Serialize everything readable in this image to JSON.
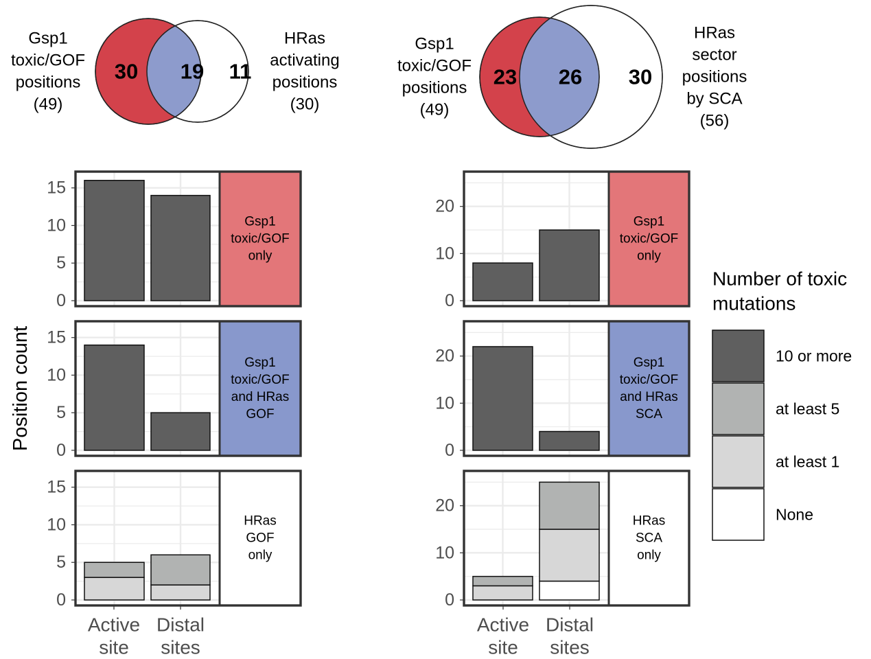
{
  "colors": {
    "red": "#d3424b",
    "blue": "#8d9bcc",
    "strip_red": "#e37679",
    "strip_blue": "#8898cc",
    "strip_white": "#ffffff",
    "ten_or_more": "#5f5f5f",
    "at_least_5": "#b1b3b2",
    "at_least_1": "#d7d7d7",
    "none": "#ffffff",
    "grid": "#ebebeb",
    "panel_border": "#333333",
    "tick_text": "#4d4d4d"
  },
  "venns": [
    {
      "left_label": [
        "Gsp1",
        "toxic/GOF",
        "positions",
        "(49)"
      ],
      "right_label": [
        "HRas",
        "activating",
        "positions",
        "(30)"
      ],
      "left_only": "30",
      "overlap": "19",
      "right_only": "11"
    },
    {
      "left_label": [
        "Gsp1",
        "toxic/GOF",
        "positions",
        "(49)"
      ],
      "right_label": [
        "HRas",
        "sector",
        "positions",
        "by SCA",
        "(56)"
      ],
      "left_only": "23",
      "overlap": "26",
      "right_only": "30"
    }
  ],
  "y_axis_title": "Position count",
  "x_tick_labels": [
    [
      "Active",
      "site"
    ],
    [
      "Distal",
      "sites"
    ]
  ],
  "legend": {
    "title": [
      "Number of toxic",
      "mutations"
    ],
    "items": [
      "10 or more",
      "at least 5",
      "at least 1",
      "None"
    ]
  },
  "chart_data": [
    {
      "type": "bar",
      "stacked": true,
      "facet_strip": [
        "Gsp1",
        "toxic/GOF",
        "only"
      ],
      "strip_color": "red",
      "categories": [
        "Active site",
        "Distal sites"
      ],
      "series": [
        {
          "name": "10 or more",
          "values": [
            16,
            14
          ]
        },
        {
          "name": "at least 5",
          "values": [
            0,
            0
          ]
        },
        {
          "name": "at least 1",
          "values": [
            0,
            0
          ]
        },
        {
          "name": "None",
          "values": [
            0,
            0
          ]
        }
      ],
      "ylim": [
        0,
        16.8
      ],
      "yticks": [
        0,
        5,
        10,
        15
      ],
      "ylabel": "Position count",
      "grid": true
    },
    {
      "type": "bar",
      "stacked": true,
      "facet_strip": [
        "Gsp1",
        "toxic/GOF",
        "and HRas",
        "GOF"
      ],
      "strip_color": "blue",
      "categories": [
        "Active site",
        "Distal sites"
      ],
      "series": [
        {
          "name": "10 or more",
          "values": [
            14,
            5
          ]
        },
        {
          "name": "at least 5",
          "values": [
            0,
            0
          ]
        },
        {
          "name": "at least 1",
          "values": [
            0,
            0
          ]
        },
        {
          "name": "None",
          "values": [
            0,
            0
          ]
        }
      ],
      "ylim": [
        0,
        16.8
      ],
      "yticks": [
        0,
        5,
        10,
        15
      ],
      "ylabel": "Position count",
      "grid": true
    },
    {
      "type": "bar",
      "stacked": true,
      "facet_strip": [
        "HRas",
        "GOF",
        "only"
      ],
      "strip_color": "white",
      "categories": [
        "Active site",
        "Distal sites"
      ],
      "series": [
        {
          "name": "10 or more",
          "values": [
            0,
            0
          ]
        },
        {
          "name": "at least 5",
          "values": [
            2,
            4
          ]
        },
        {
          "name": "at least 1",
          "values": [
            3,
            2
          ]
        },
        {
          "name": "None",
          "values": [
            0,
            0
          ]
        }
      ],
      "ylim": [
        0,
        16.8
      ],
      "yticks": [
        0,
        5,
        10,
        15
      ],
      "ylabel": "Position count",
      "grid": true
    },
    {
      "type": "bar",
      "stacked": true,
      "facet_strip": [
        "Gsp1",
        "toxic/GOF",
        "only"
      ],
      "strip_color": "red",
      "categories": [
        "Active site",
        "Distal sites"
      ],
      "series": [
        {
          "name": "10 or more",
          "values": [
            8,
            15
          ]
        },
        {
          "name": "at least 5",
          "values": [
            0,
            0
          ]
        },
        {
          "name": "at least 1",
          "values": [
            0,
            0
          ]
        },
        {
          "name": "None",
          "values": [
            0,
            0
          ]
        }
      ],
      "ylim": [
        0,
        26.8
      ],
      "yticks": [
        0,
        10,
        20
      ],
      "grid": true
    },
    {
      "type": "bar",
      "stacked": true,
      "facet_strip": [
        "Gsp1",
        "toxic/GOF",
        "and HRas",
        "SCA"
      ],
      "strip_color": "blue",
      "categories": [
        "Active site",
        "Distal sites"
      ],
      "series": [
        {
          "name": "10 or more",
          "values": [
            22,
            4
          ]
        },
        {
          "name": "at least 5",
          "values": [
            0,
            0
          ]
        },
        {
          "name": "at least 1",
          "values": [
            0,
            0
          ]
        },
        {
          "name": "None",
          "values": [
            0,
            0
          ]
        }
      ],
      "ylim": [
        0,
        26.8
      ],
      "yticks": [
        0,
        10,
        20
      ],
      "grid": true
    },
    {
      "type": "bar",
      "stacked": true,
      "facet_strip": [
        "HRas",
        "SCA",
        "only"
      ],
      "strip_color": "white",
      "categories": [
        "Active site",
        "Distal sites"
      ],
      "series": [
        {
          "name": "10 or more",
          "values": [
            0,
            0
          ]
        },
        {
          "name": "at least 5",
          "values": [
            2,
            10
          ]
        },
        {
          "name": "at least 1",
          "values": [
            3,
            11
          ]
        },
        {
          "name": "None",
          "values": [
            0,
            4
          ]
        }
      ],
      "ylim": [
        0,
        26.8
      ],
      "yticks": [
        0,
        10,
        20
      ],
      "grid": true
    }
  ]
}
